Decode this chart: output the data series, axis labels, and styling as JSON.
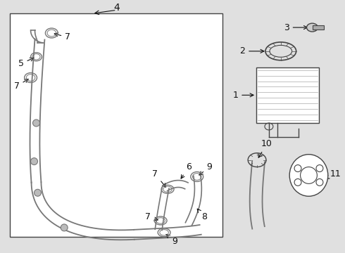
{
  "bg_color": "#e0e0e0",
  "box_color": "#ffffff",
  "line_color": "#444444",
  "pipe_color": "#777777",
  "text_color": "#111111",
  "font_size_label": 9
}
